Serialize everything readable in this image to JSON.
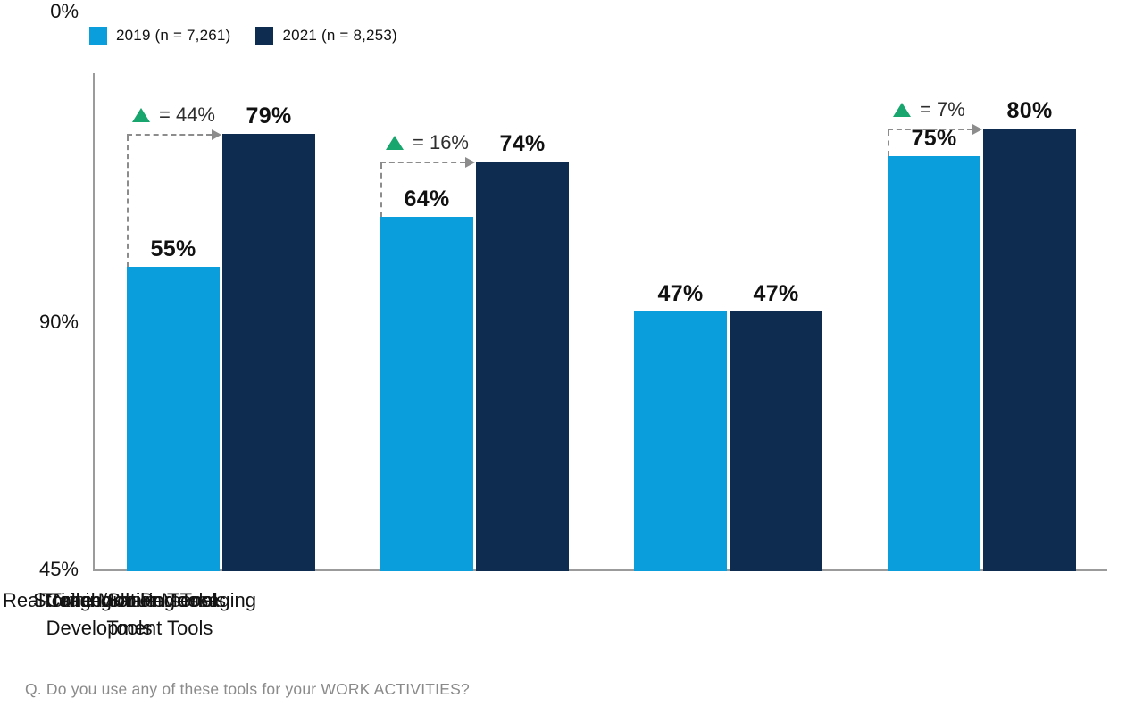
{
  "legend": [
    {
      "label": "2019 (n = 7,261)",
      "color": "#0a9edc"
    },
    {
      "label": "2021 (n = 8,253)",
      "color": "#0e2c50"
    }
  ],
  "chart_data": {
    "type": "bar",
    "title": "",
    "categories": [
      "Collaboration Tools",
      "Storage/Sharing Tools",
      "Training or Personal Development Tools",
      "Real-Time Mobile Messaging Tools"
    ],
    "series": [
      {
        "name": "2019 (n = 7,261)",
        "color": "#0a9edc",
        "values": [
          55,
          64,
          47,
          75
        ]
      },
      {
        "name": "2021 (n = 8,253)",
        "color": "#0e2c50",
        "values": [
          79,
          74,
          47,
          80
        ]
      }
    ],
    "value_labels": [
      [
        "55%",
        "64%",
        "47%",
        "75%"
      ],
      [
        "79%",
        "74%",
        "47%",
        "80%"
      ]
    ],
    "deltas": [
      "= 44%",
      "= 16%",
      null,
      "= 7%"
    ],
    "delta_color": "#19a56e",
    "xlabel": "",
    "ylabel": "",
    "ylim": [
      0,
      90
    ],
    "yticks": [
      "90%",
      "45%",
      "0%"
    ],
    "grid": false,
    "legend_position": "top-left"
  },
  "footer": "Q. Do you use any of these tools for your WORK ACTIVITIES?"
}
